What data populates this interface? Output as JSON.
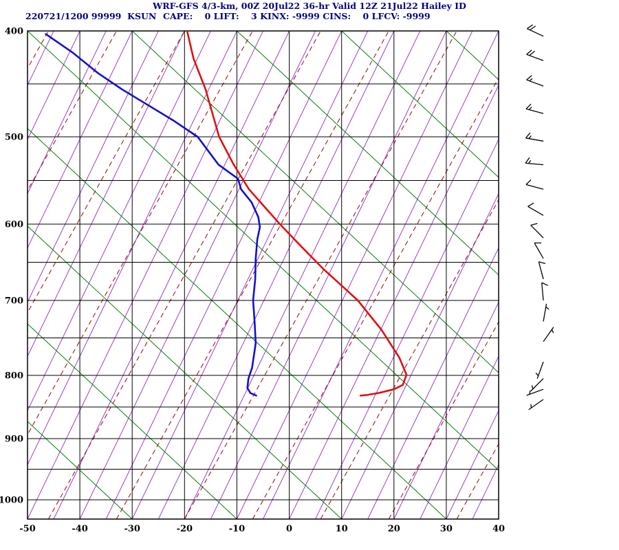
{
  "header": {
    "title": "WRF-GFS 4/3-km, 00Z 20Jul22 36-hr Valid 12Z 21Jul22 Hailey ID",
    "station_line": "220721/1200 99999  KSUN",
    "stats_line": "CAPE:    0 LIFT:    3 KINX: -9999 CINS:    0 LFCV: -9999",
    "text_color": "#000080"
  },
  "chart_data": {
    "type": "line",
    "subtype": "skew-t-log-p-sounding",
    "title": "WRF-GFS 4/3-km, 00Z 20Jul22 36-hr Valid 12Z 21Jul22 Hailey ID",
    "station": "KSUN",
    "valid": "12Z 21Jul22",
    "indices": {
      "CAPE": 0,
      "LIFT": 3,
      "KINX": -9999,
      "CINS": 0,
      "LFCV": -9999
    },
    "x_axis": {
      "tick_labels": [
        -50,
        -40,
        -30,
        -20,
        -10,
        0,
        10,
        20,
        30,
        40
      ],
      "min": -50,
      "max": 40,
      "units": "degC (skewed)"
    },
    "y_axis": {
      "tick_labels": [
        400,
        500,
        600,
        700,
        800,
        900,
        1000
      ],
      "units": "hPa",
      "scale": "log-pressure",
      "top": 400,
      "bottom": 1035
    },
    "pressure_anchors": [
      [
        400,
        45
      ],
      [
        500,
        199
      ],
      [
        600,
        326
      ],
      [
        700,
        437
      ],
      [
        800,
        546
      ],
      [
        900,
        638
      ],
      [
        1000,
        727
      ],
      [
        1035,
        755
      ]
    ],
    "pressure_gridlines": [
      400,
      450,
      500,
      550,
      600,
      650,
      700,
      750,
      800,
      850,
      900,
      950,
      1000
    ],
    "grid_color": "#000000",
    "series": [
      {
        "name": "temperature",
        "color": "#dd1111",
        "width": 2.6,
        "points": [
          [
            400,
            -19.5
          ],
          [
            426,
            -18.3
          ],
          [
            455,
            -16.0
          ],
          [
            500,
            -13.4
          ],
          [
            532,
            -10.6
          ],
          [
            560,
            -7.7
          ],
          [
            600,
            -1.8
          ],
          [
            630,
            2.4
          ],
          [
            658,
            6.4
          ],
          [
            700,
            13.1
          ],
          [
            739,
            17.6
          ],
          [
            776,
            21.0
          ],
          [
            799,
            22.4
          ],
          [
            815,
            21.7
          ],
          [
            822,
            20.0
          ],
          [
            828,
            17.0
          ],
          [
            831,
            14.8
          ],
          [
            832,
            13.6
          ]
        ]
      },
      {
        "name": "dewpoint",
        "color": "#1111cc",
        "width": 2.6,
        "points": [
          [
            403,
            -46.5
          ],
          [
            420,
            -41.5
          ],
          [
            440,
            -36.5
          ],
          [
            455,
            -32.0
          ],
          [
            470,
            -27.0
          ],
          [
            485,
            -22.0
          ],
          [
            500,
            -17.5
          ],
          [
            516,
            -15.5
          ],
          [
            532,
            -13.5
          ],
          [
            548,
            -9.8
          ],
          [
            560,
            -9.2
          ],
          [
            575,
            -7.2
          ],
          [
            592,
            -5.9
          ],
          [
            604,
            -5.6
          ],
          [
            620,
            -6.1
          ],
          [
            645,
            -6.4
          ],
          [
            672,
            -6.5
          ],
          [
            700,
            -6.9
          ],
          [
            730,
            -6.6
          ],
          [
            757,
            -6.4
          ],
          [
            790,
            -7.1
          ],
          [
            805,
            -7.8
          ],
          [
            820,
            -8.0
          ],
          [
            828,
            -7.4
          ],
          [
            832,
            -6.3
          ]
        ]
      }
    ],
    "wind_barbs": {
      "color": "#000000",
      "column_x": 790,
      "barbs": [
        {
          "p": 405,
          "dir": 295,
          "spd": 20
        },
        {
          "p": 428,
          "dir": 290,
          "spd": 20
        },
        {
          "p": 452,
          "dir": 290,
          "spd": 15
        },
        {
          "p": 478,
          "dir": 285,
          "spd": 15
        },
        {
          "p": 505,
          "dir": 280,
          "spd": 15
        },
        {
          "p": 532,
          "dir": 275,
          "spd": 15
        },
        {
          "p": 560,
          "dir": 285,
          "spd": 10
        },
        {
          "p": 590,
          "dir": 300,
          "spd": 10
        },
        {
          "p": 618,
          "dir": 315,
          "spd": 10
        },
        {
          "p": 645,
          "dir": 330,
          "spd": 10
        },
        {
          "p": 672,
          "dir": 345,
          "spd": 10
        },
        {
          "p": 700,
          "dir": 355,
          "spd": 10
        },
        {
          "p": 728,
          "dir": 10,
          "spd": 5
        },
        {
          "p": 755,
          "dir": 35,
          "spd": 5
        },
        {
          "p": 782,
          "dir": 200,
          "spd": 5
        },
        {
          "p": 805,
          "dir": 225,
          "spd": 5
        },
        {
          "p": 822,
          "dir": 250,
          "spd": 5
        },
        {
          "p": 838,
          "dir": 235,
          "spd": 5
        }
      ]
    },
    "background_lines": {
      "isotherms": {
        "color": "#9a3fc4",
        "min": -95,
        "max": 40,
        "step": 5,
        "top_shift": 45,
        "width": 1
      },
      "dry_adiabats": {
        "color": "#008000",
        "min": -50,
        "max": 130,
        "step": 20,
        "top_shift": -100,
        "width": 1
      },
      "mixing_ratio_lines": {
        "color": "#990000",
        "min": -98,
        "max": 33,
        "step": 13,
        "top_shift": 52,
        "width": 1,
        "dash": "7,5"
      }
    }
  }
}
